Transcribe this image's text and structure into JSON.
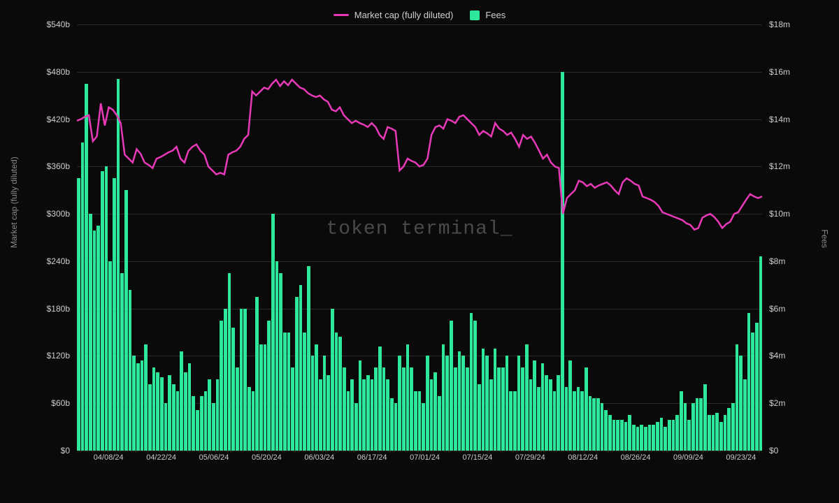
{
  "chart": {
    "type": "combo-bar-line",
    "background_color": "#0a0a0a",
    "grid_color": "#2a2a2a",
    "text_color": "#cccccc",
    "axis_label_color": "#888888",
    "watermark": "token terminal_",
    "watermark_color": "#4a4a4a",
    "legend": [
      {
        "label": "Market cap (fully diluted)",
        "type": "line",
        "color": "#e83ab8"
      },
      {
        "label": "Fees",
        "type": "bar",
        "color": "#2de89a"
      }
    ],
    "left_axis": {
      "label": "Market cap (fully diluted)",
      "min": 0,
      "max": 540,
      "tick_step": 60,
      "tick_prefix": "$",
      "tick_suffix": "b",
      "ticks": [
        "$0",
        "$60b",
        "$120b",
        "$180b",
        "$240b",
        "$300b",
        "$360b",
        "$420b",
        "$480b",
        "$540b"
      ]
    },
    "right_axis": {
      "label": "Fees",
      "min": 0,
      "max": 18,
      "tick_step": 2,
      "tick_prefix": "$",
      "tick_suffix": "m",
      "ticks": [
        "$0",
        "$2m",
        "$4m",
        "$6m",
        "$8m",
        "$10m",
        "$12m",
        "$14m",
        "$16m",
        "$18m"
      ]
    },
    "x_ticks": [
      "04/08/24",
      "04/22/24",
      "05/06/24",
      "05/20/24",
      "06/03/24",
      "06/17/24",
      "07/01/24",
      "07/15/24",
      "07/29/24",
      "08/12/24",
      "08/26/24",
      "09/09/24",
      "09/23/24"
    ],
    "fees_values": [
      11.5,
      13.0,
      15.5,
      10.0,
      9.3,
      9.5,
      11.8,
      12.0,
      8.0,
      11.5,
      15.7,
      7.5,
      11.0,
      6.8,
      4.0,
      3.7,
      3.8,
      4.5,
      2.8,
      3.5,
      3.3,
      3.1,
      2.0,
      3.2,
      2.8,
      2.5,
      4.2,
      3.3,
      3.7,
      2.3,
      1.7,
      2.3,
      2.5,
      3.0,
      2.0,
      3.0,
      5.5,
      6.0,
      7.5,
      5.2,
      3.5,
      6.0,
      6.0,
      2.7,
      2.5,
      6.5,
      4.5,
      4.5,
      5.5,
      10.0,
      8.0,
      7.5,
      5.0,
      5.0,
      3.5,
      6.5,
      7.0,
      5.0,
      7.8,
      4.0,
      4.5,
      3.0,
      4.0,
      3.2,
      6.0,
      5.0,
      4.8,
      3.5,
      2.5,
      3.0,
      2.0,
      3.8,
      3.0,
      3.2,
      3.0,
      3.5,
      4.4,
      3.5,
      3.0,
      2.2,
      2.0,
      4.0,
      3.5,
      4.5,
      3.5,
      2.5,
      2.5,
      2.0,
      4.0,
      3.0,
      3.3,
      2.3,
      4.5,
      4.0,
      5.5,
      3.5,
      4.2,
      4.0,
      3.5,
      5.8,
      5.5,
      2.8,
      4.3,
      4.0,
      3.0,
      4.3,
      3.5,
      3.5,
      4.0,
      2.5,
      2.5,
      4.0,
      3.5,
      4.5,
      3.0,
      3.8,
      2.7,
      3.7,
      3.2,
      3.0,
      2.5,
      3.2,
      16.0,
      2.7,
      3.8,
      2.5,
      2.7,
      2.5,
      3.5,
      2.3,
      2.2,
      2.2,
      2.0,
      1.7,
      1.5,
      1.3,
      1.3,
      1.3,
      1.2,
      1.5,
      1.1,
      1.0,
      1.1,
      1.0,
      1.1,
      1.1,
      1.2,
      1.4,
      1.0,
      1.3,
      1.3,
      1.5,
      2.5,
      2.0,
      1.3,
      2.0,
      2.2,
      2.2,
      2.8,
      1.5,
      1.5,
      1.6,
      1.2,
      1.5,
      1.8,
      2.0,
      4.5,
      4.0,
      3.0,
      5.8,
      5.0,
      5.4,
      8.2
    ],
    "market_cap_values": [
      418,
      420,
      423,
      425,
      392,
      398,
      440,
      412,
      435,
      432,
      425,
      415,
      375,
      370,
      365,
      382,
      376,
      365,
      362,
      358,
      370,
      372,
      375,
      378,
      380,
      385,
      370,
      365,
      380,
      385,
      388,
      380,
      375,
      360,
      355,
      350,
      352,
      350,
      375,
      378,
      380,
      385,
      395,
      400,
      455,
      450,
      455,
      460,
      458,
      465,
      470,
      462,
      468,
      463,
      470,
      465,
      460,
      458,
      453,
      450,
      448,
      450,
      445,
      442,
      432,
      430,
      435,
      425,
      420,
      415,
      418,
      415,
      413,
      410,
      415,
      410,
      400,
      395,
      410,
      408,
      405,
      355,
      360,
      370,
      367,
      365,
      360,
      362,
      370,
      400,
      410,
      412,
      408,
      420,
      418,
      415,
      423,
      425,
      420,
      415,
      410,
      400,
      405,
      402,
      398,
      415,
      408,
      405,
      400,
      403,
      395,
      385,
      400,
      395,
      398,
      390,
      380,
      370,
      375,
      365,
      360,
      358,
      300,
      320,
      325,
      330,
      342,
      340,
      335,
      338,
      333,
      336,
      338,
      340,
      336,
      330,
      325,
      340,
      345,
      342,
      338,
      336,
      322,
      320,
      318,
      315,
      310,
      302,
      300,
      298,
      296,
      294,
      292,
      288,
      286,
      280,
      282,
      295,
      298,
      300,
      296,
      290,
      282,
      287,
      290,
      300,
      302,
      310,
      318,
      325,
      322,
      320,
      322
    ],
    "line_width": 2.5,
    "bar_opacity": 1.0
  }
}
